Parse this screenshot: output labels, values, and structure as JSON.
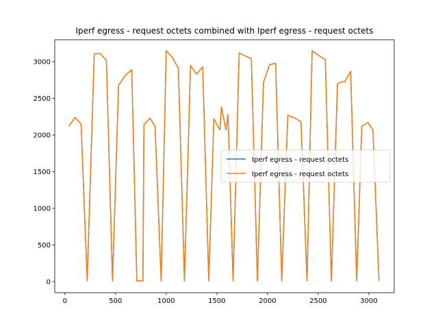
{
  "chart_data": {
    "type": "line",
    "title": "Iperf egress - request octets combined with Iperf egress - request octets",
    "xlabel": "",
    "ylabel": "",
    "xlim": [
      -100,
      3250
    ],
    "ylim": [
      -150,
      3300
    ],
    "xticks": [
      0,
      500,
      1000,
      1500,
      2000,
      2500,
      3000
    ],
    "yticks": [
      0,
      500,
      1000,
      1500,
      2000,
      2500,
      3000
    ],
    "grid": false,
    "legend_position": "center-right",
    "series": [
      {
        "name": "Iperf egress - request octets",
        "color": "#1f77b4",
        "x": [
          40,
          100,
          160,
          220,
          290,
          350,
          410,
          470,
          530,
          600,
          660,
          710,
          770,
          780,
          840,
          890,
          950,
          1000,
          1060,
          1120,
          1180,
          1240,
          1300,
          1360,
          1420,
          1470,
          1530,
          1545,
          1560,
          1590,
          1610,
          1660,
          1720,
          1780,
          1840,
          1900,
          1960,
          2020,
          2080,
          2140,
          2200,
          2260,
          2330,
          2390,
          2440,
          2500,
          2570,
          2630,
          2690,
          2740,
          2760,
          2820,
          2880,
          2930,
          2990,
          3040,
          3100
        ],
        "y": [
          2120,
          2240,
          2150,
          10,
          3110,
          3110,
          3020,
          10,
          2680,
          2820,
          2890,
          10,
          10,
          2140,
          2230,
          2120,
          10,
          3150,
          3060,
          2910,
          10,
          2950,
          2830,
          2930,
          10,
          2220,
          2070,
          2380,
          2280,
          2070,
          2280,
          10,
          3120,
          3080,
          3040,
          10,
          2720,
          2960,
          2980,
          10,
          2270,
          2240,
          2180,
          10,
          3150,
          3090,
          3030,
          10,
          2700,
          2730,
          2720,
          2870,
          10,
          2120,
          2170,
          2070,
          10
        ]
      },
      {
        "name": "Iperf egress - request octets",
        "color": "#ff7f0e",
        "x": [
          40,
          100,
          160,
          220,
          290,
          350,
          410,
          470,
          530,
          600,
          660,
          710,
          770,
          780,
          840,
          890,
          950,
          1000,
          1060,
          1120,
          1180,
          1240,
          1300,
          1360,
          1420,
          1470,
          1530,
          1545,
          1560,
          1590,
          1610,
          1660,
          1720,
          1780,
          1840,
          1900,
          1960,
          2020,
          2080,
          2140,
          2200,
          2260,
          2330,
          2390,
          2440,
          2500,
          2570,
          2630,
          2690,
          2740,
          2760,
          2820,
          2880,
          2930,
          2990,
          3040,
          3100
        ],
        "y": [
          2120,
          2240,
          2150,
          10,
          3110,
          3110,
          3020,
          10,
          2680,
          2820,
          2890,
          10,
          10,
          2140,
          2230,
          2120,
          10,
          3150,
          3060,
          2910,
          10,
          2950,
          2830,
          2930,
          10,
          2220,
          2070,
          2380,
          2280,
          2070,
          2280,
          10,
          3120,
          3080,
          3040,
          10,
          2720,
          2960,
          2980,
          10,
          2270,
          2240,
          2180,
          10,
          3150,
          3090,
          3030,
          10,
          2700,
          2730,
          2720,
          2870,
          10,
          2120,
          2170,
          2070,
          10
        ]
      }
    ]
  }
}
